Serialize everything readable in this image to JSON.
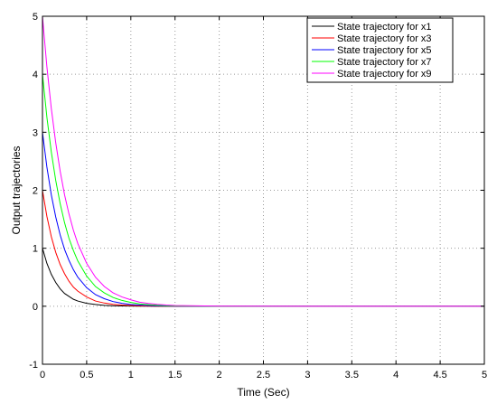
{
  "chart_data": {
    "type": "line",
    "xlabel": "Time (Sec)",
    "ylabel": "Output trajectories",
    "xlim": [
      0,
      5
    ],
    "ylim": [
      -1,
      5
    ],
    "xticks": [
      "0",
      "0.5",
      "1",
      "1.5",
      "2",
      "2.5",
      "3",
      "3.5",
      "4",
      "4.5",
      "5"
    ],
    "yticks": [
      "-1",
      "0",
      "1",
      "2",
      "3",
      "4",
      "5"
    ],
    "grid": true,
    "legend_position": "top-right",
    "x": [
      0,
      0.05,
      0.1,
      0.15,
      0.2,
      0.25,
      0.3,
      0.35,
      0.4,
      0.5,
      0.6,
      0.7,
      0.8,
      0.9,
      1.0,
      1.1,
      1.2,
      1.3,
      1.4,
      1.5,
      2.0,
      3.0,
      4.0,
      5.0
    ],
    "series": [
      {
        "name": "State trajectory for x1",
        "color": "#000000",
        "values": [
          1.0,
          0.74,
          0.55,
          0.41,
          0.3,
          0.22,
          0.17,
          0.12,
          0.09,
          0.05,
          0.03,
          0.015,
          0.008,
          0.005,
          0.003,
          0.002,
          0.001,
          0,
          0,
          0,
          0,
          0,
          0,
          0
        ]
      },
      {
        "name": "State trajectory for x3",
        "color": "#ff0000",
        "values": [
          2.0,
          1.55,
          1.2,
          0.93,
          0.72,
          0.56,
          0.43,
          0.33,
          0.26,
          0.16,
          0.09,
          0.055,
          0.033,
          0.02,
          0.012,
          0.007,
          0.004,
          0.002,
          0.001,
          0,
          0,
          0,
          0,
          0
        ]
      },
      {
        "name": "State trajectory for x5",
        "color": "#0000ff",
        "values": [
          3.0,
          2.4,
          1.92,
          1.54,
          1.23,
          0.98,
          0.79,
          0.63,
          0.5,
          0.32,
          0.2,
          0.13,
          0.08,
          0.05,
          0.03,
          0.02,
          0.012,
          0.007,
          0.004,
          0.002,
          0,
          0,
          0,
          0
        ]
      },
      {
        "name": "State trajectory for x7",
        "color": "#00ff00",
        "values": [
          4.0,
          3.26,
          2.66,
          2.17,
          1.77,
          1.44,
          1.17,
          0.96,
          0.78,
          0.52,
          0.34,
          0.23,
          0.15,
          0.1,
          0.065,
          0.04,
          0.027,
          0.017,
          0.01,
          0.006,
          0,
          0,
          0,
          0
        ]
      },
      {
        "name": "State trajectory for x9",
        "color": "#ff00ff",
        "values": [
          5.0,
          4.13,
          3.41,
          2.82,
          2.33,
          1.92,
          1.59,
          1.31,
          1.08,
          0.74,
          0.5,
          0.34,
          0.23,
          0.16,
          0.11,
          0.07,
          0.048,
          0.032,
          0.02,
          0.013,
          0.001,
          0,
          0,
          0
        ]
      }
    ]
  }
}
